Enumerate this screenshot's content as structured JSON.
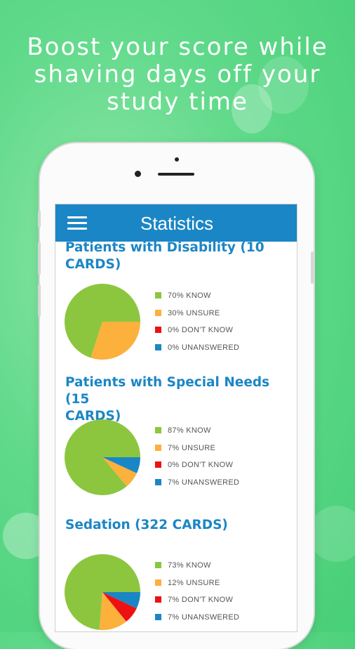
{
  "headline": [
    "Boost your score while",
    "shaving days off your",
    "study time"
  ],
  "appbar": {
    "title": "Statistics",
    "menu_icon": "hamburger-menu-icon"
  },
  "colors": {
    "know": "#8cc63f",
    "unsure": "#fbb13c",
    "dont_know": "#ee1111",
    "unanswered": "#1b86c5",
    "accent": "#1b86c5"
  },
  "decks": [
    {
      "title_lines": [
        "Patients with Disability (10",
        "CARDS)"
      ],
      "legend": [
        "70% KNOW",
        "30% UNSURE",
        "0% DON'T KNOW",
        "0% UNANSWERED"
      ],
      "chart_data": {
        "type": "pie",
        "categories": [
          "KNOW",
          "UNSURE",
          "DON'T KNOW",
          "UNANSWERED"
        ],
        "values": [
          70,
          30,
          0,
          0
        ]
      }
    },
    {
      "title_lines": [
        "Patients with Special Needs (15",
        "CARDS)"
      ],
      "legend": [
        "87% KNOW",
        "7% UNSURE",
        "0% DON'T KNOW",
        "7% UNANSWERED"
      ],
      "chart_data": {
        "type": "pie",
        "categories": [
          "KNOW",
          "UNSURE",
          "DON'T KNOW",
          "UNANSWERED"
        ],
        "values": [
          87,
          7,
          0,
          7
        ]
      }
    },
    {
      "title_lines": [
        "Sedation (322 CARDS)"
      ],
      "legend": [
        "73% KNOW",
        "12% UNSURE",
        "7% DON'T KNOW",
        "7% UNANSWERED"
      ],
      "chart_data": {
        "type": "pie",
        "categories": [
          "KNOW",
          "UNSURE",
          "DON'T KNOW",
          "UNANSWERED"
        ],
        "values": [
          73,
          12,
          7,
          7
        ]
      }
    }
  ]
}
